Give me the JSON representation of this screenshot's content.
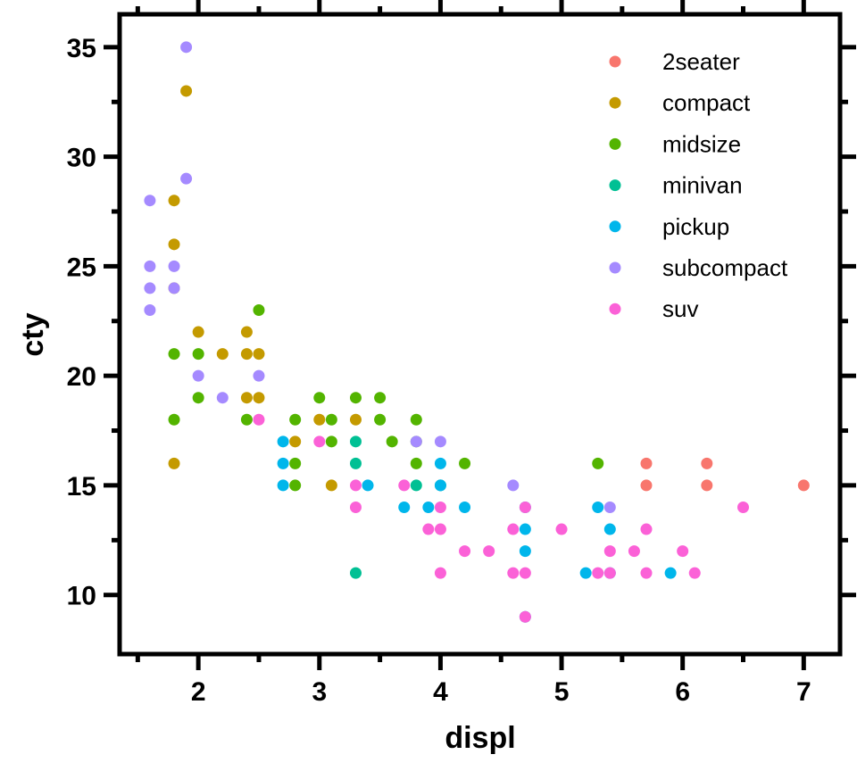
{
  "chart_data": {
    "type": "scatter",
    "xlabel": "displ",
    "ylabel": "cty",
    "xlim": [
      1.35,
      7.3
    ],
    "ylim": [
      7.3,
      36.5
    ],
    "xticks": [
      2,
      3,
      4,
      5,
      6,
      7
    ],
    "yticks": [
      10,
      15,
      20,
      25,
      30,
      35
    ],
    "xminor": [
      1.5,
      2.5,
      3.5,
      4.5,
      5.5,
      6.5
    ],
    "yminor": [
      12.5,
      17.5,
      22.5,
      27.5,
      32.5
    ],
    "grid": false,
    "legend_position": "top-right",
    "series": [
      {
        "name": "2seater",
        "color": "#F8766D",
        "points": [
          [
            5.7,
            16
          ],
          [
            5.7,
            15
          ],
          [
            6.2,
            16
          ],
          [
            6.2,
            15
          ],
          [
            7.0,
            15
          ]
        ]
      },
      {
        "name": "compact",
        "color": "#C49A00",
        "points": [
          [
            1.8,
            28
          ],
          [
            1.8,
            26
          ],
          [
            1.8,
            24
          ],
          [
            1.8,
            16
          ],
          [
            1.9,
            33
          ],
          [
            2.0,
            22
          ],
          [
            2.2,
            21
          ],
          [
            2.4,
            22
          ],
          [
            2.4,
            21
          ],
          [
            2.4,
            19
          ],
          [
            2.5,
            21
          ],
          [
            2.5,
            19
          ],
          [
            2.8,
            17
          ],
          [
            3.0,
            18
          ],
          [
            3.1,
            15
          ],
          [
            3.3,
            18
          ]
        ]
      },
      {
        "name": "midsize",
        "color": "#53B400",
        "points": [
          [
            1.8,
            21
          ],
          [
            1.8,
            18
          ],
          [
            2.0,
            21
          ],
          [
            2.0,
            19
          ],
          [
            2.4,
            18
          ],
          [
            2.5,
            23
          ],
          [
            2.8,
            18
          ],
          [
            2.8,
            16
          ],
          [
            2.8,
            15
          ],
          [
            3.0,
            19
          ],
          [
            3.1,
            18
          ],
          [
            3.1,
            17
          ],
          [
            3.3,
            19
          ],
          [
            3.5,
            19
          ],
          [
            3.5,
            18
          ],
          [
            3.6,
            17
          ],
          [
            3.8,
            18
          ],
          [
            3.8,
            17
          ],
          [
            3.8,
            16
          ],
          [
            4.2,
            16
          ],
          [
            5.3,
            16
          ]
        ]
      },
      {
        "name": "minivan",
        "color": "#00C094",
        "points": [
          [
            3.3,
            17
          ],
          [
            3.3,
            16
          ],
          [
            3.3,
            11
          ],
          [
            3.8,
            15
          ],
          [
            4.0,
            15
          ]
        ]
      },
      {
        "name": "pickup",
        "color": "#00B6EB",
        "points": [
          [
            2.7,
            17
          ],
          [
            2.7,
            16
          ],
          [
            2.7,
            15
          ],
          [
            3.4,
            15
          ],
          [
            3.7,
            14
          ],
          [
            3.9,
            14
          ],
          [
            4.0,
            16
          ],
          [
            4.0,
            15
          ],
          [
            4.2,
            14
          ],
          [
            4.7,
            14
          ],
          [
            4.7,
            13
          ],
          [
            4.7,
            12
          ],
          [
            4.7,
            9
          ],
          [
            5.2,
            11
          ],
          [
            5.3,
            14
          ],
          [
            5.4,
            13
          ],
          [
            5.4,
            11
          ],
          [
            5.9,
            11
          ]
        ]
      },
      {
        "name": "subcompact",
        "color": "#A58AFF",
        "points": [
          [
            1.6,
            28
          ],
          [
            1.6,
            25
          ],
          [
            1.6,
            24
          ],
          [
            1.6,
            23
          ],
          [
            1.8,
            25
          ],
          [
            1.8,
            24
          ],
          [
            1.9,
            35
          ],
          [
            1.9,
            29
          ],
          [
            2.0,
            20
          ],
          [
            2.2,
            19
          ],
          [
            2.5,
            20
          ],
          [
            3.8,
            17
          ],
          [
            4.0,
            17
          ],
          [
            4.6,
            15
          ],
          [
            5.4,
            14
          ]
        ]
      },
      {
        "name": "suv",
        "color": "#FB61D7",
        "points": [
          [
            2.5,
            18
          ],
          [
            3.0,
            17
          ],
          [
            3.3,
            15
          ],
          [
            3.3,
            14
          ],
          [
            3.7,
            15
          ],
          [
            3.9,
            13
          ],
          [
            4.0,
            14
          ],
          [
            4.0,
            13
          ],
          [
            4.0,
            11
          ],
          [
            4.2,
            12
          ],
          [
            4.4,
            12
          ],
          [
            4.6,
            13
          ],
          [
            4.6,
            11
          ],
          [
            4.7,
            14
          ],
          [
            4.7,
            11
          ],
          [
            4.7,
            9
          ],
          [
            5.0,
            13
          ],
          [
            5.3,
            11
          ],
          [
            5.4,
            12
          ],
          [
            5.4,
            11
          ],
          [
            5.6,
            12
          ],
          [
            5.7,
            13
          ],
          [
            5.7,
            11
          ],
          [
            6.0,
            12
          ],
          [
            6.1,
            11
          ],
          [
            6.5,
            14
          ]
        ]
      }
    ]
  }
}
